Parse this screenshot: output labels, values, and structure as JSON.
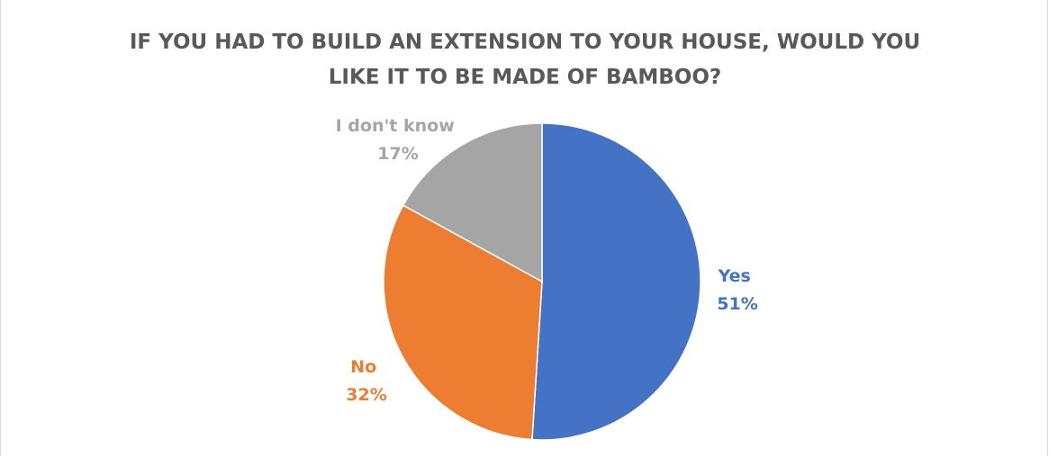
{
  "chart_data": {
    "type": "pie",
    "title_lines": [
      "IF YOU HAD TO BUILD AN EXTENSION TO YOUR HOUSE, WOULD YOU",
      "LIKE IT TO BE MADE OF BAMBOO?"
    ],
    "slices": [
      {
        "label": "Yes",
        "value": 51,
        "value_text": "51%",
        "color": "#4472C4"
      },
      {
        "label": "No",
        "value": 32,
        "value_text": "32%",
        "color": "#ED7D31"
      },
      {
        "label": "I don't know",
        "value": 17,
        "value_text": "17%",
        "color": "#A5A5A5"
      }
    ],
    "start_position": "top",
    "direction": "clockwise",
    "legend": "none"
  }
}
